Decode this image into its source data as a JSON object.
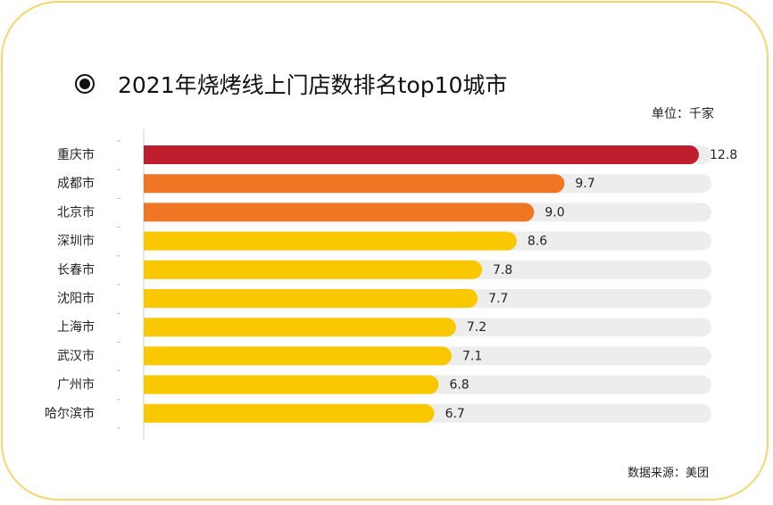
{
  "title": "2021年烧烤线上门店数排名top10城市",
  "unit_text": "单位：千家",
  "source_text": "数据来源：美团",
  "colors": {
    "frame": "#f5d66b",
    "top1": "#be1e2d",
    "top2_3": "#ef7622",
    "rest": "#f9c800",
    "track": "#ededed"
  },
  "chart_data": {
    "type": "bar",
    "orientation": "horizontal",
    "title": "2021年烧烤线上门店数排名top10城市",
    "unit": "单位：千家",
    "categories": [
      "重庆市",
      "成都市",
      "北京市",
      "深圳市",
      "长春市",
      "沈阳市",
      "上海市",
      "武汉市",
      "广州市",
      "哈尔滨市"
    ],
    "values": [
      12.8,
      9.7,
      9.0,
      8.6,
      7.8,
      7.7,
      7.2,
      7.1,
      6.8,
      6.7
    ],
    "value_labels": [
      "12.8",
      "9.7",
      "9.0",
      "8.6",
      "7.8",
      "7.7",
      "7.2",
      "7.1",
      "6.8",
      "6.7"
    ],
    "xlim": [
      0,
      13
    ],
    "bar_colors": [
      "#be1e2d",
      "#ef7622",
      "#ef7622",
      "#f9c800",
      "#f9c800",
      "#f9c800",
      "#f9c800",
      "#f9c800",
      "#f9c800",
      "#f9c800"
    ],
    "grid": false,
    "legend": "none"
  }
}
